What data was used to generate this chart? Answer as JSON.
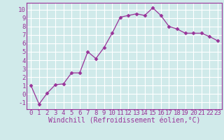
{
  "x": [
    0,
    1,
    2,
    3,
    4,
    5,
    6,
    7,
    8,
    9,
    10,
    11,
    12,
    13,
    14,
    15,
    16,
    17,
    18,
    19,
    20,
    21,
    22,
    23
  ],
  "y": [
    1,
    -1.2,
    0.1,
    1.1,
    1.2,
    2.5,
    2.5,
    5.0,
    4.2,
    5.5,
    7.2,
    9.1,
    9.3,
    9.5,
    9.3,
    10.2,
    9.3,
    8.0,
    7.7,
    7.2,
    7.2,
    7.2,
    6.8,
    6.3
  ],
  "line_color": "#993399",
  "marker": "D",
  "marker_size": 2.5,
  "xlabel": "Windchill (Refroidissement éolien,°C)",
  "xlim": [
    -0.5,
    23.5
  ],
  "ylim": [
    -1.8,
    10.8
  ],
  "yticks": [
    -1,
    0,
    1,
    2,
    3,
    4,
    5,
    6,
    7,
    8,
    9,
    10
  ],
  "xticks": [
    0,
    1,
    2,
    3,
    4,
    5,
    6,
    7,
    8,
    9,
    10,
    11,
    12,
    13,
    14,
    15,
    16,
    17,
    18,
    19,
    20,
    21,
    22,
    23
  ],
  "background_color": "#d0eaea",
  "grid_color": "#ffffff",
  "font_color": "#993399",
  "xlabel_fontsize": 7,
  "tick_fontsize": 6.5
}
